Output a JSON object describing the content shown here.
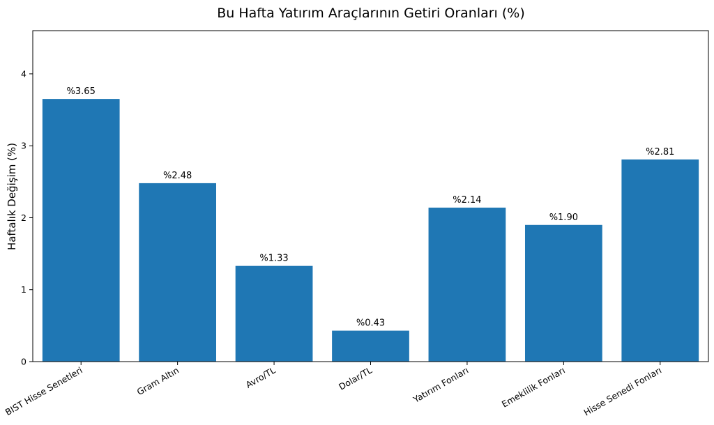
{
  "chart_data": {
    "type": "bar",
    "title": "Bu Hafta Yatırım Araçlarının Getiri Oranları (%)",
    "xlabel": "",
    "ylabel": "Haftalık Değişim (%)",
    "categories": [
      "BIST Hisse Senetleri",
      "Gram Altın",
      "Avro/TL",
      "Dolar/TL",
      "Yatırım Fonları",
      "Emeklilik Fonları",
      "Hisse Senedi Fonları"
    ],
    "values": [
      3.65,
      2.48,
      1.33,
      0.43,
      2.14,
      1.9,
      2.81
    ],
    "value_labels": [
      "%3.65",
      "%2.48",
      "%1.33",
      "%0.43",
      "%2.14",
      "%1.90",
      "%2.81"
    ],
    "ylim": [
      0,
      4.6
    ],
    "yticks": [
      0,
      1,
      2,
      3,
      4
    ],
    "bar_color": "#1f77b4",
    "grid": false,
    "legend": "none"
  }
}
